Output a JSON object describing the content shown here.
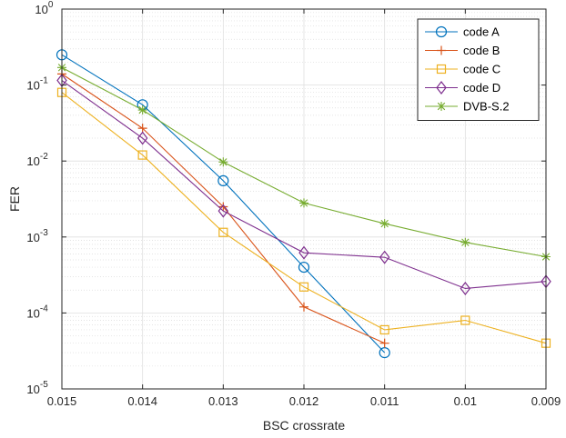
{
  "chart_data": {
    "type": "line",
    "xlabel": "BSC crossrate",
    "ylabel": "FER",
    "x": [
      0.015,
      0.014,
      0.013,
      0.012,
      0.011,
      0.01,
      0.009
    ],
    "x_tick_labels": [
      "0.015",
      "0.014",
      "0.013",
      "0.012",
      "0.011",
      "0.01",
      "0.009"
    ],
    "x_reversed": true,
    "xlim": [
      0.015,
      0.009
    ],
    "y_scale": "log",
    "ylim": [
      1e-05,
      1
    ],
    "y_ticks": [
      {
        "base": "10",
        "exp": "0",
        "value": 1
      },
      {
        "base": "10",
        "exp": "-1",
        "value": 0.1
      },
      {
        "base": "10",
        "exp": "-2",
        "value": 0.01
      },
      {
        "base": "10",
        "exp": "-3",
        "value": 0.001
      },
      {
        "base": "10",
        "exp": "-4",
        "value": 0.0001
      },
      {
        "base": "10",
        "exp": "-5",
        "value": 1e-05
      }
    ],
    "grid": true,
    "minor_grid": true,
    "legend_position": "top-right",
    "series": [
      {
        "name": "code A",
        "color": "#0072BD",
        "marker": "circle",
        "x": [
          0.015,
          0.014,
          0.013,
          0.012,
          0.011
        ],
        "y": [
          0.25,
          0.055,
          0.0055,
          0.0004,
          3e-05
        ]
      },
      {
        "name": "code B",
        "color": "#D95319",
        "marker": "plus",
        "x": [
          0.015,
          0.014,
          0.013,
          0.012,
          0.011
        ],
        "y": [
          0.14,
          0.027,
          0.0025,
          0.00012,
          4e-05
        ]
      },
      {
        "name": "code C",
        "color": "#EDB120",
        "marker": "square",
        "x": [
          0.015,
          0.014,
          0.013,
          0.012,
          0.011,
          0.01,
          0.009
        ],
        "y": [
          0.08,
          0.012,
          0.00115,
          0.00022,
          6e-05,
          8e-05,
          4e-05
        ]
      },
      {
        "name": "code D",
        "color": "#7E2F8E",
        "marker": "diamond",
        "x": [
          0.015,
          0.014,
          0.013,
          0.012,
          0.011,
          0.01,
          0.009
        ],
        "y": [
          0.115,
          0.02,
          0.0022,
          0.00062,
          0.00054,
          0.00021,
          0.00026
        ]
      },
      {
        "name": "DVB-S.2",
        "color": "#77AC30",
        "marker": "asterisk",
        "x": [
          0.015,
          0.014,
          0.013,
          0.012,
          0.011,
          0.01,
          0.009
        ],
        "y": [
          0.17,
          0.047,
          0.0097,
          0.0028,
          0.0015,
          0.00085,
          0.00055
        ]
      }
    ]
  }
}
